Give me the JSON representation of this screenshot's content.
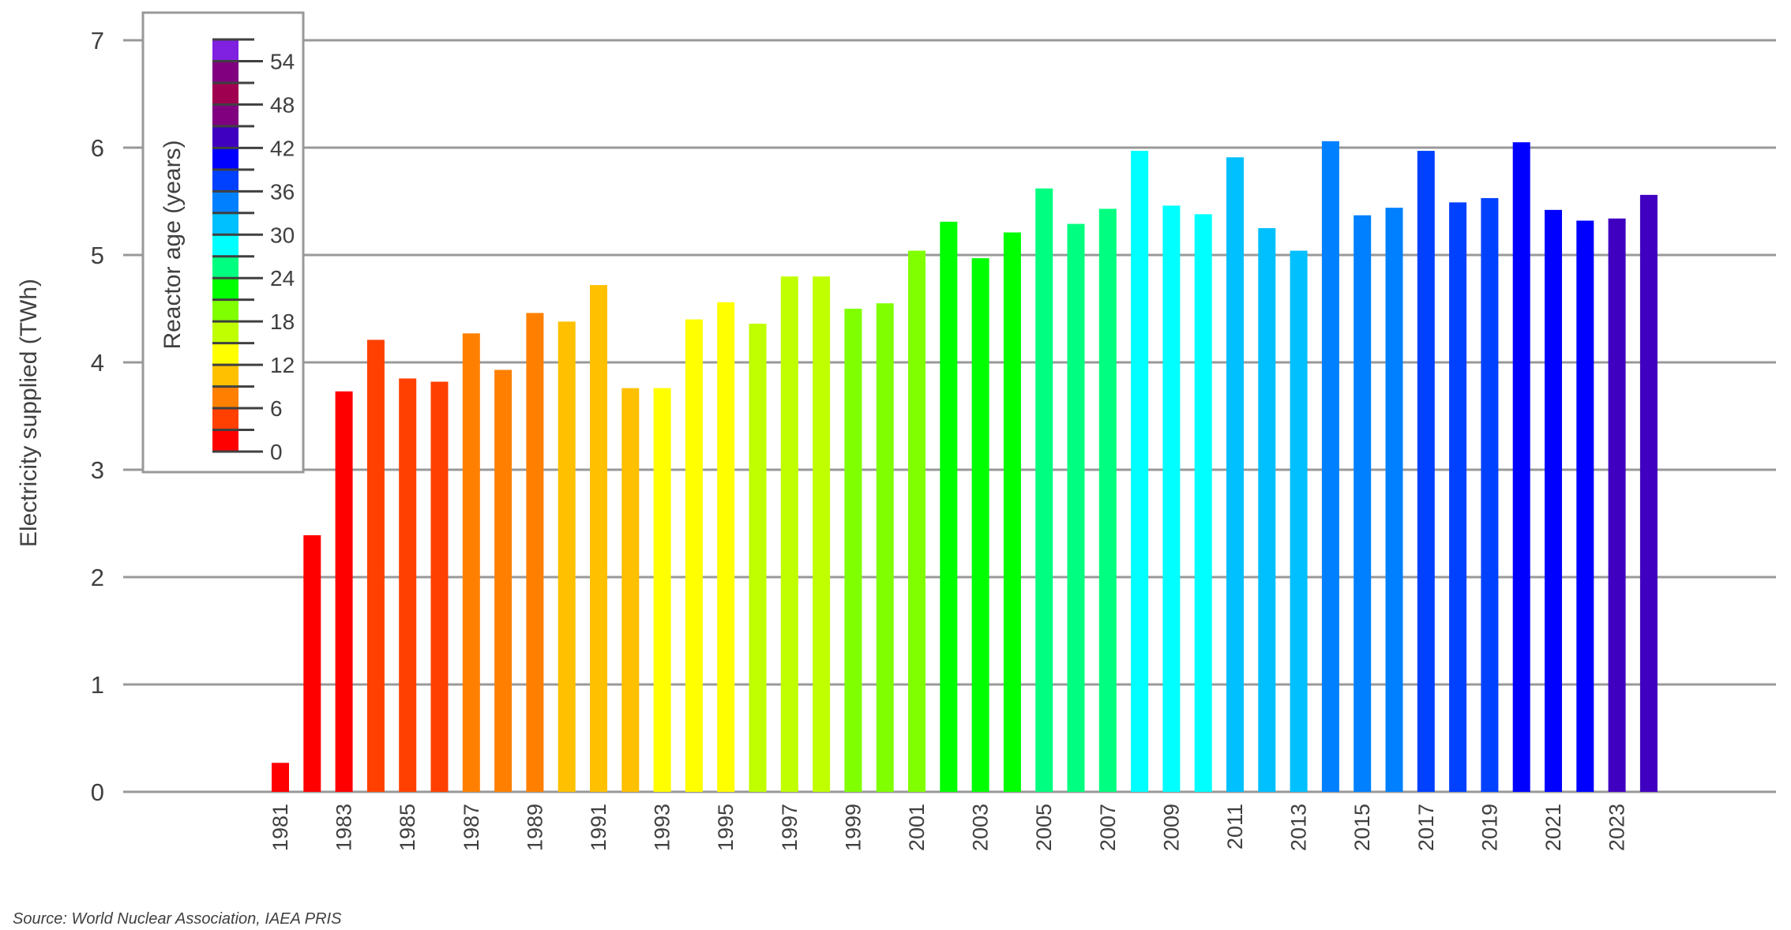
{
  "chart_data": {
    "type": "bar",
    "title": "",
    "xlabel": "",
    "ylabel": "Electricity supplied (TWh)",
    "ylim": [
      0,
      7
    ],
    "yticks": [
      0,
      1,
      2,
      3,
      4,
      5,
      6,
      7
    ],
    "grid": true,
    "categories": [
      1981,
      1982,
      1983,
      1984,
      1985,
      1986,
      1987,
      1988,
      1989,
      1990,
      1991,
      1992,
      1993,
      1994,
      1995,
      1996,
      1997,
      1998,
      1999,
      2000,
      2001,
      2002,
      2003,
      2004,
      2005,
      2006,
      2007,
      2008,
      2009,
      2010,
      2011,
      2012,
      2013,
      2014,
      2015,
      2016,
      2017,
      2018,
      2019,
      2020,
      2021,
      2022,
      2023,
      2024
    ],
    "xtick_labels": [
      "1981",
      "1983",
      "1985",
      "1987",
      "1989",
      "1991",
      "1993",
      "1995",
      "1997",
      "1999",
      "2001",
      "2003",
      "2005",
      "2007",
      "2009",
      "2011",
      "2013",
      "2015",
      "2017",
      "2019",
      "2021",
      "2023"
    ],
    "values": [
      0.27,
      2.39,
      3.73,
      4.21,
      3.85,
      3.82,
      4.27,
      3.93,
      4.46,
      4.38,
      4.72,
      3.76,
      3.76,
      4.4,
      4.56,
      4.36,
      4.8,
      4.8,
      4.5,
      4.55,
      5.04,
      5.31,
      4.97,
      5.21,
      5.62,
      5.29,
      5.43,
      5.97,
      5.46,
      5.38,
      5.91,
      5.25,
      5.04,
      6.06,
      5.37,
      5.44,
      5.97,
      5.49,
      5.53,
      6.05,
      5.42,
      5.32,
      5.34,
      5.56
    ],
    "color_by": "reactor age (years) = year - 1981",
    "colorbar": {
      "title": "Reactor age (years)",
      "placement": "top-left",
      "range": [
        0,
        57
      ],
      "step": 3,
      "tick_labels": [
        "0",
        "6",
        "12",
        "18",
        "24",
        "30",
        "36",
        "42",
        "48",
        "54"
      ],
      "colors": [
        "#ff0000",
        "#ff4000",
        "#ff8000",
        "#ffc000",
        "#ffff00",
        "#c0ff00",
        "#80ff00",
        "#00ff00",
        "#00ff80",
        "#00ffff",
        "#00c0ff",
        "#0080ff",
        "#0040ff",
        "#0000ff",
        "#4000c0",
        "#800080",
        "#a00050",
        "#800080",
        "#8020e0"
      ]
    },
    "source": "Source: World Nuclear Association, IAEA PRIS"
  }
}
